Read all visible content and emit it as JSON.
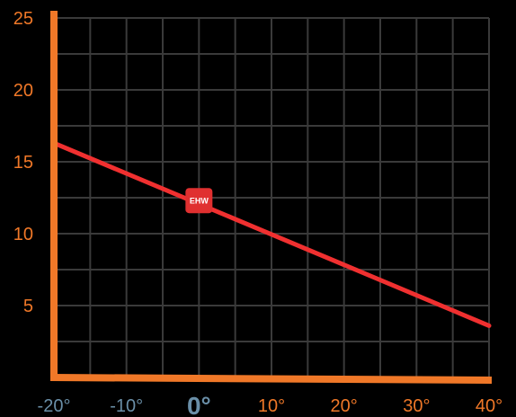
{
  "chart_data": {
    "type": "line",
    "title": "",
    "xlabel": "",
    "ylabel": "",
    "xlim": [
      -20,
      40
    ],
    "ylim": [
      0,
      25
    ],
    "y_ticks": [
      {
        "value": 5,
        "label": "5"
      },
      {
        "value": 10,
        "label": "10"
      },
      {
        "value": 15,
        "label": "15"
      },
      {
        "value": 20,
        "label": "20"
      },
      {
        "value": 25,
        "label": "25"
      }
    ],
    "x_ticks": [
      {
        "value": -20,
        "label": "-20°",
        "style": "muted"
      },
      {
        "value": -10,
        "label": "-10°",
        "style": "muted"
      },
      {
        "value": 0,
        "label": "0°",
        "style": "zero"
      },
      {
        "value": 10,
        "label": "10°",
        "style": "accent"
      },
      {
        "value": 20,
        "label": "20°",
        "style": "accent"
      },
      {
        "value": 30,
        "label": "30°",
        "style": "accent"
      },
      {
        "value": 40,
        "label": "40°",
        "style": "accent"
      }
    ],
    "series": [
      {
        "values": [
          [
            -20,
            16.3
          ],
          [
            40,
            3.6
          ]
        ],
        "color": "#f03030"
      }
    ],
    "annotation": {
      "label": "EHW",
      "x": 0,
      "y": 12.3,
      "color": "#e03030"
    },
    "grid": true,
    "grid_color": "#3a3a3a",
    "axis_color": "#f07828",
    "tick_color_accent": "#f07828",
    "tick_color_muted": "#6a8fa8"
  }
}
